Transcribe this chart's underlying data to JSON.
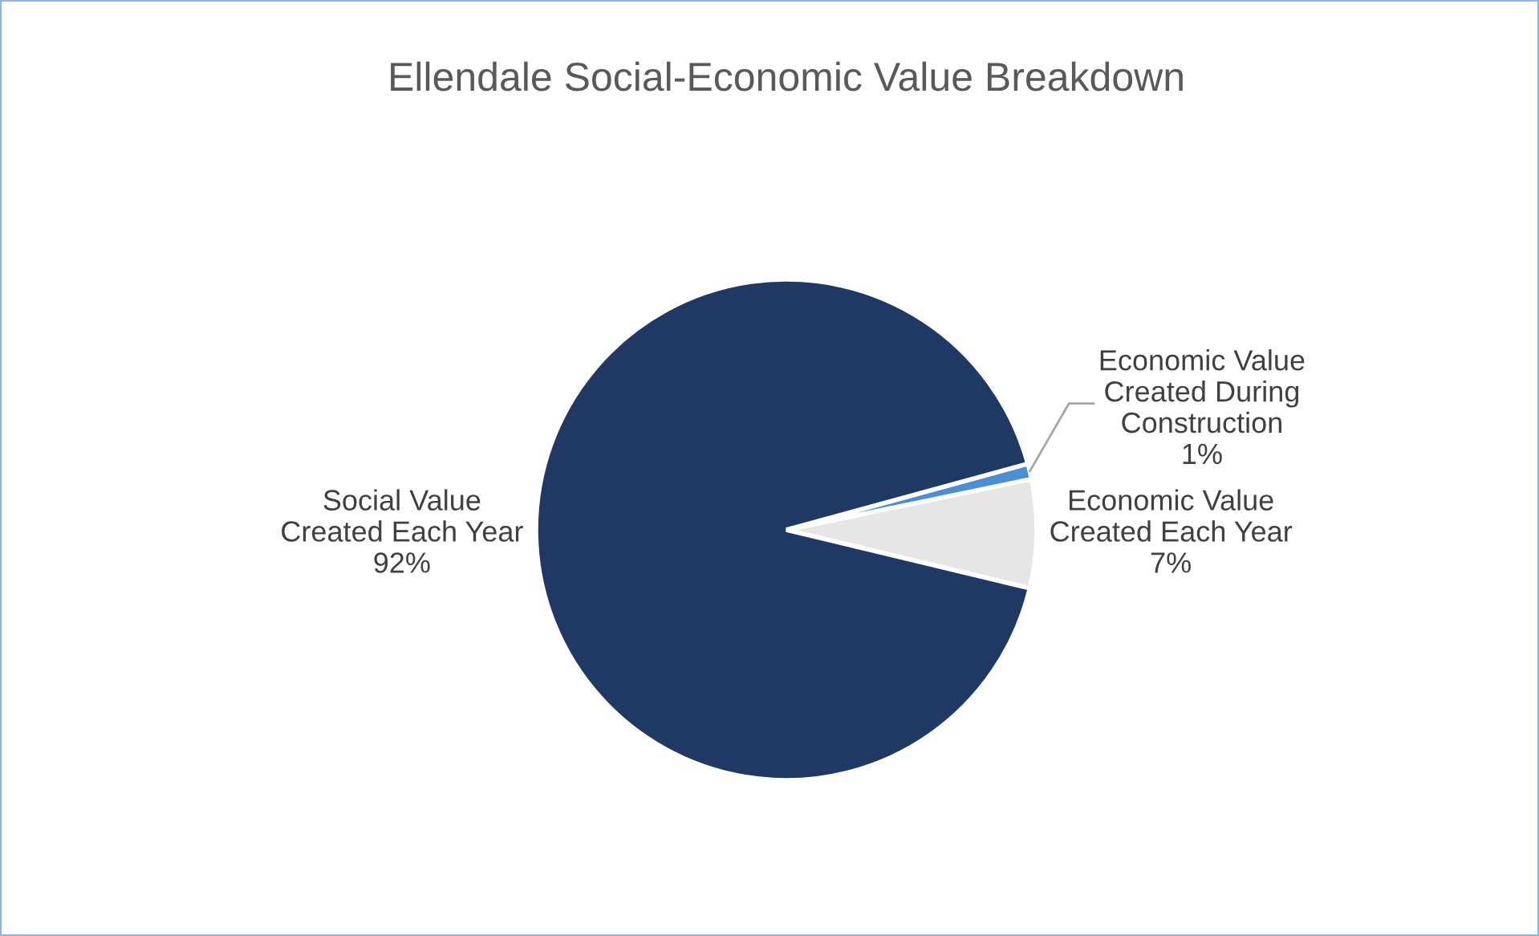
{
  "chart_data": {
    "type": "pie",
    "title": "Ellendale Social-Economic Value Breakdown",
    "categories": [
      "Economic Value\nCreated Each Year",
      "Economic Value\nCreated During\nConstruction",
      "Social Value\nCreated Each Year"
    ],
    "values": [
      7,
      1,
      92
    ],
    "colors": [
      "#e7e6e6",
      "#4a8fd6",
      "#1f3864"
    ],
    "value_labels": [
      "7%",
      "1%",
      "92%"
    ]
  }
}
